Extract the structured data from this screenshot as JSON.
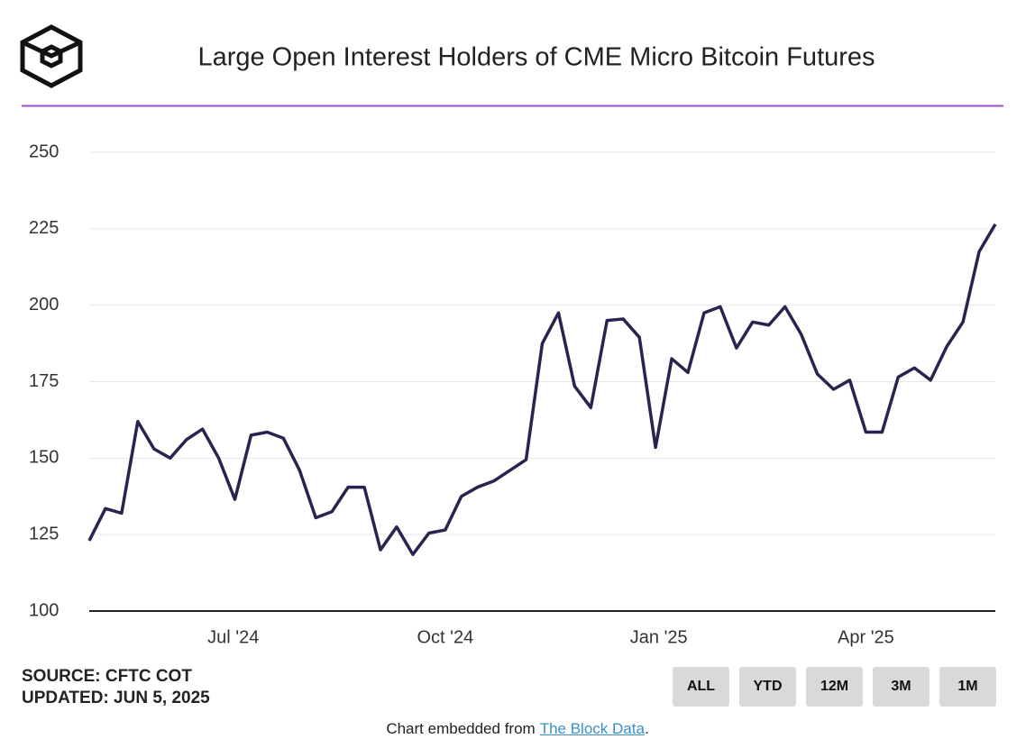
{
  "chart_data": {
    "type": "line",
    "title": "Large Open Interest Holders of CME Micro Bitcoin Futures",
    "categories": [
      null,
      null,
      null,
      null,
      null,
      null,
      null,
      null,
      null,
      null,
      null,
      null,
      null,
      null,
      null,
      null,
      null,
      null,
      null,
      null,
      null,
      null,
      null,
      null,
      null,
      null,
      null,
      null,
      null,
      null,
      null,
      null,
      null,
      null,
      null,
      null,
      null,
      null,
      null,
      null,
      null,
      null,
      null,
      null,
      null,
      null,
      null,
      null,
      null,
      null,
      null,
      null,
      null,
      null,
      null,
      null,
      null
    ],
    "values": [
      123,
      133.5,
      132,
      162,
      153,
      150,
      156,
      159.5,
      150,
      136.5,
      157.5,
      158.5,
      156.5,
      146,
      130.5,
      132.5,
      140.5,
      140.5,
      120,
      127.5,
      118.5,
      125.5,
      126.5,
      137.5,
      140.5,
      142.5,
      146,
      149.5,
      187.5,
      197.5,
      173.5,
      166.5,
      195,
      195.5,
      189.5,
      153.5,
      182.5,
      178,
      197.5,
      199.5,
      186,
      194.5,
      193.5,
      199.5,
      190.5,
      177.5,
      172.5,
      175.5,
      158.5,
      158.5,
      176.5,
      179.5,
      175.5,
      186.5,
      194.5,
      217.5,
      226.5
    ],
    "color": "#27254f",
    "xlim": [
      0,
      56
    ],
    "xticks": [
      {
        "value": 8.9,
        "label": "Jul '24"
      },
      {
        "value": 22,
        "label": "Oct '24"
      },
      {
        "value": 35.2,
        "label": "Jan '25"
      },
      {
        "value": 48,
        "label": "Apr '25"
      }
    ],
    "ylim": [
      100,
      250
    ],
    "yticks": [
      100,
      125,
      150,
      175,
      200,
      225,
      250
    ],
    "grid": true
  },
  "source": "SOURCE: CFTC COT",
  "updated": "UPDATED: JUN 5, 2025",
  "buttons": [
    "ALL",
    "YTD",
    "12M",
    "3M",
    "1M"
  ],
  "footer": {
    "text": "Chart embedded from",
    "link": "The Block Data",
    "end": "."
  }
}
